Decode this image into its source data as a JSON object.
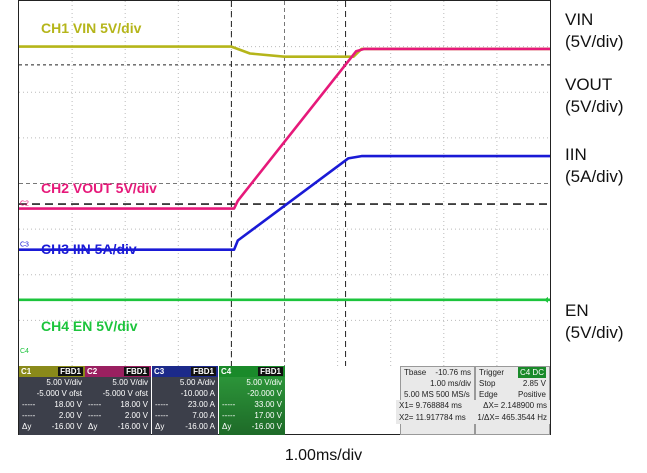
{
  "chart_data": {
    "type": "line",
    "xlabel": "1.00ms/div",
    "x_divisions": 10,
    "y_divisions": 8,
    "grid": true,
    "series": [
      {
        "name": "CH1 VIN 5V/div",
        "color": "#b5b51a",
        "points": [
          [
            0,
            7.0
          ],
          [
            4.0,
            7.0
          ],
          [
            4.35,
            6.85
          ],
          [
            5.0,
            6.78
          ],
          [
            6.3,
            6.78
          ],
          [
            6.45,
            6.95
          ],
          [
            10,
            6.95
          ]
        ]
      },
      {
        "name": "CH2 VOUT 5V/div",
        "color": "#e6197a",
        "points": [
          [
            0,
            3.45
          ],
          [
            4.05,
            3.45
          ],
          [
            4.12,
            3.62
          ],
          [
            6.35,
            6.9
          ],
          [
            6.5,
            6.95
          ],
          [
            10,
            6.95
          ]
        ]
      },
      {
        "name": "CH3 IIN 5A/div",
        "color": "#1a1ad6",
        "points": [
          [
            0,
            2.55
          ],
          [
            4.05,
            2.55
          ],
          [
            4.12,
            2.75
          ],
          [
            6.2,
            4.55
          ],
          [
            6.45,
            4.6
          ],
          [
            10,
            4.6
          ]
        ]
      },
      {
        "name": "CH4 EN 5V/div",
        "color": "#1cc43c",
        "points": [
          [
            0,
            1.45
          ],
          [
            10,
            1.45
          ]
        ]
      }
    ],
    "cursors": {
      "x1_div": 4.0,
      "x2_div": 6.15,
      "y_upper_div": 6.6,
      "y_lower_div": 3.55
    }
  },
  "trace_labels": [
    {
      "text": "CH1 VIN 5V/div",
      "color": "#b5b51a"
    },
    {
      "text": "CH2 VOUT 5V/div",
      "color": "#e6197a"
    },
    {
      "text": "CH3 IIN 5A/div",
      "color": "#1a1ad6"
    },
    {
      "text": "CH4 EN 5V/div",
      "color": "#1cc43c"
    }
  ],
  "side_labels": {
    "vin": [
      "VIN",
      "(5V/div)"
    ],
    "vout": [
      "VOUT",
      "(5V/div)"
    ],
    "iin": [
      "IIN",
      "(5A/div)"
    ],
    "en": [
      "EN",
      "(5V/div)"
    ]
  },
  "channel_markers": [
    "C2",
    "C3",
    "C4"
  ],
  "panels": [
    {
      "tag": "C1",
      "badge": "FBD1",
      "color": "#8a8a1a",
      "rows": [
        [
          "",
          "5.00 V/div"
        ],
        [
          "",
          "-5.000 V ofst"
        ],
        [
          "-----",
          "18.00 V"
        ],
        [
          "-----",
          "2.00 V"
        ],
        [
          "Δy",
          "-16.00 V"
        ]
      ]
    },
    {
      "tag": "C2",
      "badge": "FBD1",
      "color": "#9a2060",
      "rows": [
        [
          "",
          "5.00 V/div"
        ],
        [
          "",
          "-5.000 V ofst"
        ],
        [
          "-----",
          "18.00 V"
        ],
        [
          "-----",
          "2.00 V"
        ],
        [
          "Δy",
          "-16.00 V"
        ]
      ]
    },
    {
      "tag": "C3",
      "badge": "FBD1",
      "color": "#1c2a8a",
      "rows": [
        [
          "",
          "5.00 A/div"
        ],
        [
          "",
          "-10.000 A"
        ],
        [
          "-----",
          "23.00 A"
        ],
        [
          "-----",
          "7.00 A"
        ],
        [
          "Δy",
          "-16.00 A"
        ]
      ]
    },
    {
      "tag": "C4",
      "badge": "FBD1",
      "color": "#1a8a2a",
      "rows": [
        [
          "",
          "5.00 V/div"
        ],
        [
          "",
          "-20.000 V"
        ],
        [
          "-----",
          "33.00 V"
        ],
        [
          "-----",
          "17.00 V"
        ],
        [
          "Δy",
          "-16.00 V"
        ]
      ]
    }
  ],
  "timebase": {
    "tbase_label": "Tbase",
    "tbase_val": "-10.76 ms",
    "div": "1.00 ms/div",
    "rate": "5.00 MS  500 MS/s",
    "trigger_label": "Trigger",
    "trigger_badge": "C4 DC",
    "stop": "Stop",
    "stop_val": "2.85 V",
    "edge": "Edge",
    "edge_val": "Positive",
    "x1": "X1=  9.768884 ms",
    "dx": "ΔX= 2.148900 ms",
    "x2": "X2= 11.917784 ms",
    "inv_dx": "1/ΔX= 465.3544 Hz"
  }
}
